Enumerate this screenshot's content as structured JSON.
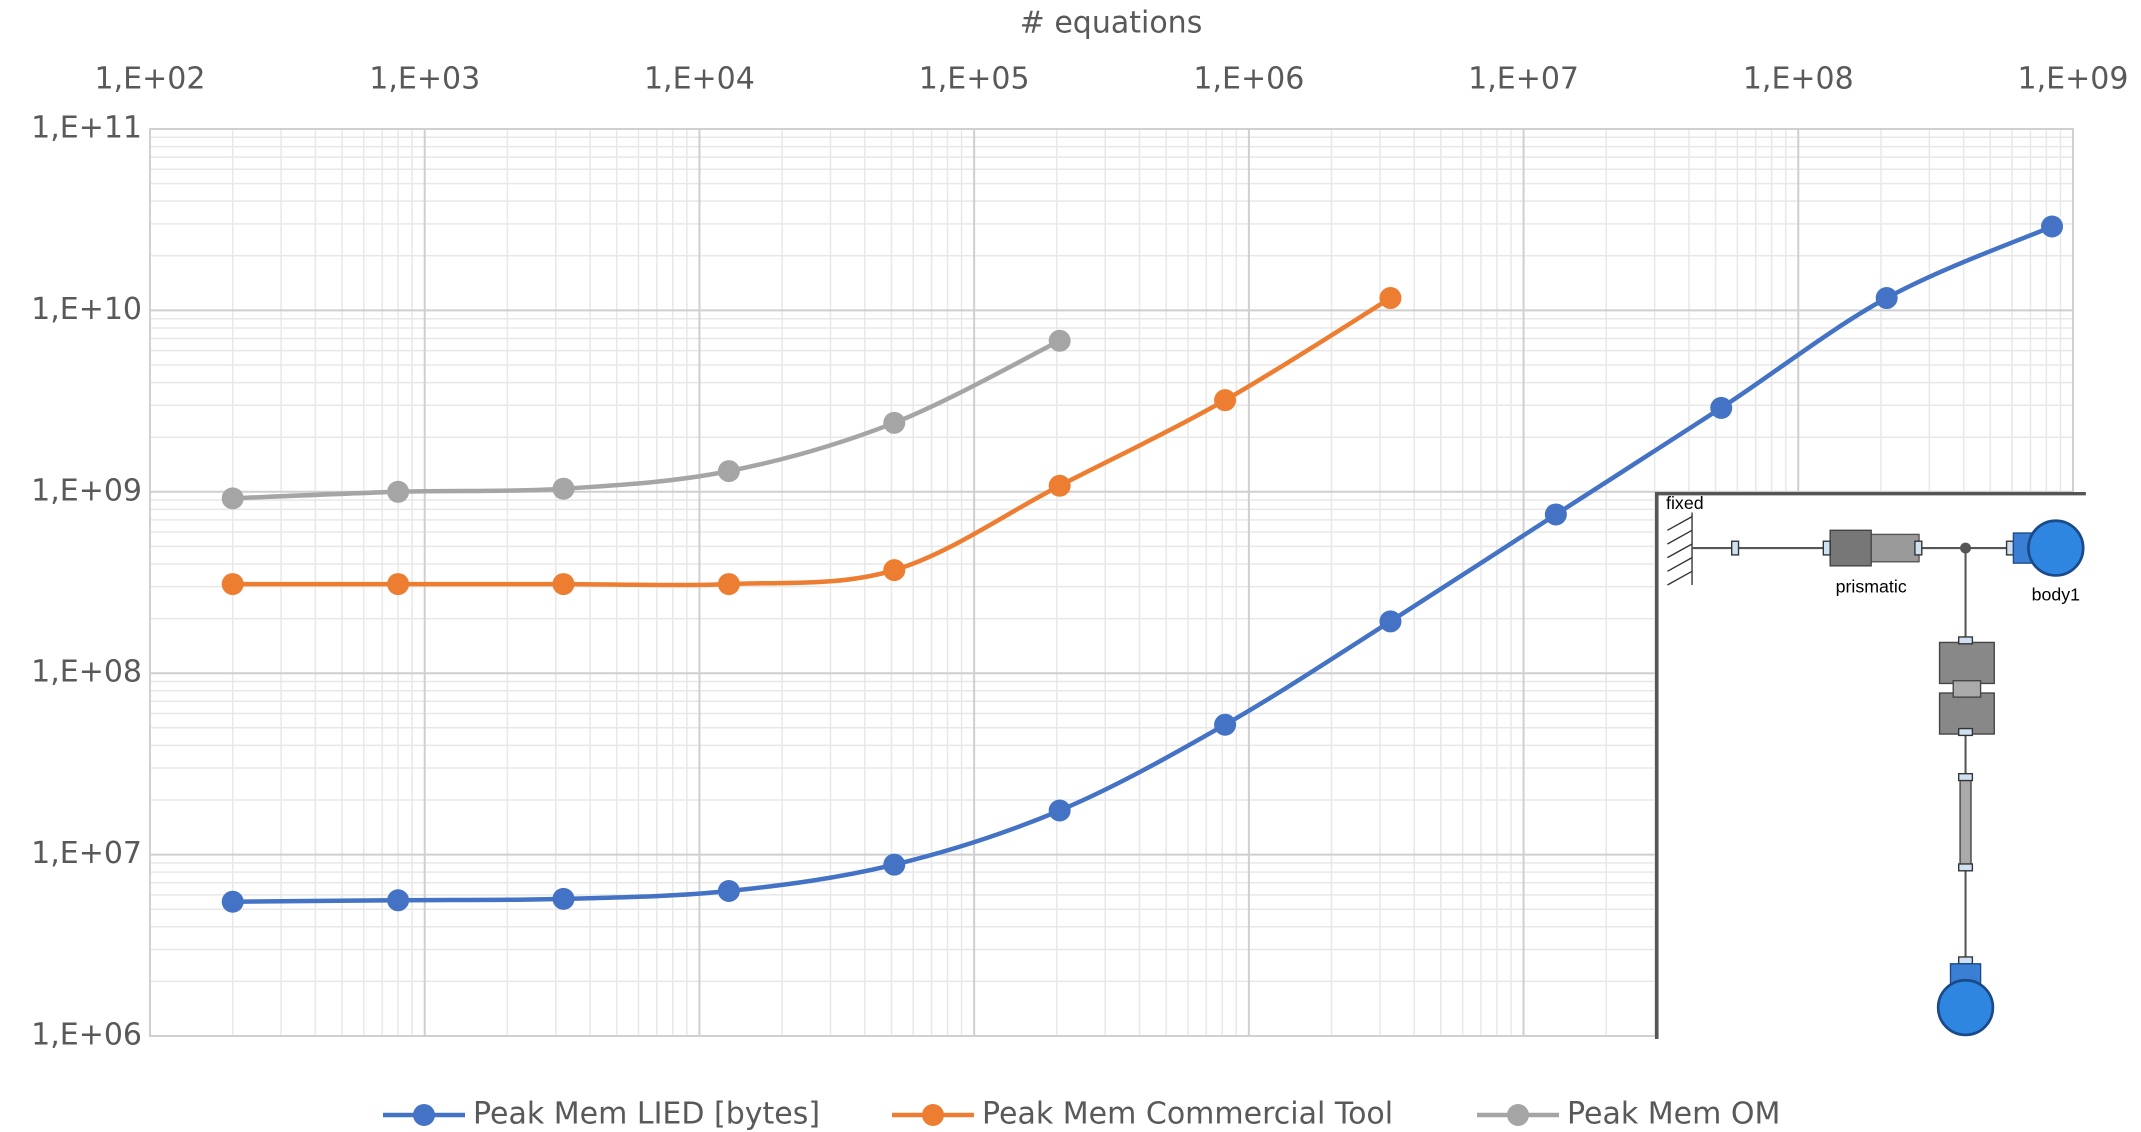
{
  "chart_data": {
    "type": "line",
    "x_label": "# equations",
    "xlog": true,
    "ylog": true,
    "grid": true,
    "legend": "bottom",
    "x": [
      200,
      800,
      3200,
      12800,
      51200,
      204800,
      819200,
      3276800,
      13107200,
      52428800,
      209715200,
      838860800
    ],
    "series": [
      {
        "name": "Peak Mem LIED [bytes]",
        "color": "#4472c4",
        "values": [
          5500000,
          5600000,
          5700000,
          6300000,
          8800000,
          17500000,
          52000000,
          193000000,
          750000000,
          2900000000,
          11700000000,
          29000000000
        ]
      },
      {
        "name": "Peak Mem Commercial Tool",
        "color": "#ed7d31",
        "values": [
          310000000,
          310000000,
          310000000,
          310000000,
          370000000,
          1080000000,
          3200000000,
          11700000000,
          null,
          null,
          null,
          null
        ]
      },
      {
        "name": "Peak Mem OM",
        "color": "#a5a5a5",
        "values": [
          920000000,
          1000000000,
          1040000000,
          1300000000,
          2400000000,
          6800000000,
          null,
          null,
          null,
          null,
          null,
          null
        ]
      }
    ],
    "xlim": [
      100,
      1000000000
    ],
    "xticks": [
      {
        "value": 100,
        "label": "1,E+02"
      },
      {
        "value": 1000,
        "label": "1,E+03"
      },
      {
        "value": 10000,
        "label": "1,E+04"
      },
      {
        "value": 100000,
        "label": "1,E+05"
      },
      {
        "value": 1000000,
        "label": "1,E+06"
      },
      {
        "value": 10000000,
        "label": "1,E+07"
      },
      {
        "value": 100000000,
        "label": "1,E+08"
      },
      {
        "value": 1000000000,
        "label": "1,E+09"
      }
    ],
    "ylim": [
      1000000,
      100000000000
    ],
    "yticks": [
      {
        "value": 1000000,
        "label": "1,E+06"
      },
      {
        "value": 10000000,
        "label": "1,E+07"
      },
      {
        "value": 100000000,
        "label": "1,E+08"
      },
      {
        "value": 1000000000,
        "label": "1,E+09"
      },
      {
        "value": 10000000000,
        "label": "1,E+10"
      },
      {
        "value": 100000000000,
        "label": "1,E+11"
      }
    ]
  },
  "inset": {
    "labels": [
      "fixed",
      "prismatic",
      "body1"
    ]
  }
}
